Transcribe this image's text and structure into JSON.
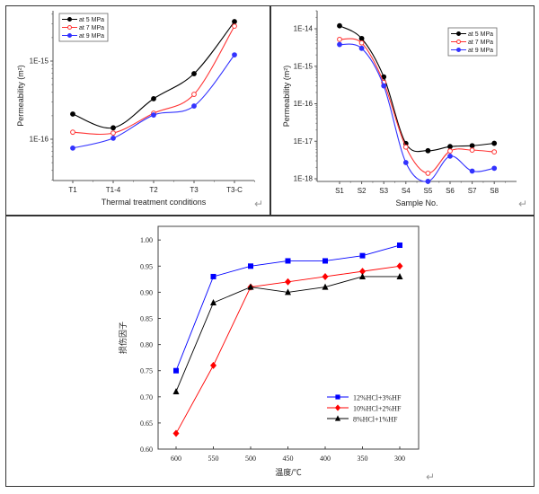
{
  "return_glyph": "↵",
  "chart_data": [
    {
      "type": "line",
      "yscale": "log",
      "title": "",
      "xlabel": "Thermal treatment conditions",
      "ylabel": "Permeability (m²)",
      "categories": [
        "T1",
        "T1-4",
        "T2",
        "T3",
        "T3-C"
      ],
      "ytick_labels": [
        "1E-16",
        "1E-15"
      ],
      "ylim": [
        3e-17,
        5e-15
      ],
      "legend_position": "top-left",
      "series": [
        {
          "name": "at 5 MPa",
          "color": "#000000",
          "marker": "filled-circle",
          "values": [
            2.1e-16,
            1.4e-16,
            3.3e-16,
            6.9e-16,
            3.2e-15
          ]
        },
        {
          "name": "at 7 MPa",
          "color": "#ff3333",
          "marker": "open-circle",
          "values": [
            1.23e-16,
            1.2e-16,
            2.15e-16,
            3.75e-16,
            2.8e-15
          ]
        },
        {
          "name": "at 9 MPa",
          "color": "#3333ff",
          "marker": "filled-circle",
          "values": [
            7.7e-17,
            1.03e-16,
            2.04e-16,
            2.66e-16,
            1.2e-15
          ]
        }
      ]
    },
    {
      "type": "line",
      "yscale": "log",
      "title": "",
      "xlabel": "Sample No.",
      "ylabel": "Permeability (m²)",
      "categories": [
        "S1",
        "S2",
        "S3",
        "S4",
        "S5",
        "S6",
        "S7",
        "S8"
      ],
      "ytick_labels": [
        "1E-18",
        "1E-17",
        "1E-16",
        "1E-15",
        "1E-14"
      ],
      "ylim": [
        8e-19,
        1.5e-14
      ],
      "legend_position": "top-right",
      "series": [
        {
          "name": "at 5 MPa",
          "color": "#000000",
          "marker": "filled-circle",
          "values": [
            1.2e-14,
            5.5e-15,
            5.2e-16,
            8.7e-18,
            5.6e-18,
            7.2e-18,
            7.6e-18,
            8.8e-18
          ]
        },
        {
          "name": "at 7 MPa",
          "color": "#ff3333",
          "marker": "open-circle",
          "values": [
            5.2e-15,
            4.2e-15,
            3.7e-16,
            7e-18,
            1.4e-18,
            5.5e-18,
            5.8e-18,
            5.2e-18
          ]
        },
        {
          "name": "at 9 MPa",
          "color": "#3333ff",
          "marker": "filled-circle",
          "values": [
            3.8e-15,
            3e-15,
            3e-16,
            2.7e-18,
            8.5e-19,
            4e-18,
            1.6e-18,
            1.9e-18
          ]
        }
      ]
    },
    {
      "type": "line",
      "title": "",
      "xlabel": "温度/℃",
      "ylabel": "损伤因子",
      "categories": [
        "600",
        "550",
        "500",
        "450",
        "400",
        "350",
        "300"
      ],
      "ytick_labels": [
        "0.60",
        "0.65",
        "0.70",
        "0.75",
        "0.80",
        "0.85",
        "0.90",
        "0.95",
        "1.00"
      ],
      "ylim": [
        0.6,
        1.02
      ],
      "grid": false,
      "legend_position": "bottom-right",
      "series": [
        {
          "name": "12%HCl+3%HF",
          "color": "#0000ff",
          "marker": "square",
          "values": [
            0.75,
            0.93,
            0.95,
            0.96,
            0.96,
            0.97,
            0.99
          ]
        },
        {
          "name": "10%HCl+2%HF",
          "color": "#ff0000",
          "marker": "diamond",
          "values": [
            0.63,
            0.76,
            0.91,
            0.92,
            0.93,
            0.94,
            0.95
          ]
        },
        {
          "name": "8%HCl+1%HF",
          "color": "#000000",
          "marker": "triangle",
          "values": [
            0.71,
            0.88,
            0.91,
            0.9,
            0.91,
            0.93,
            0.93
          ]
        }
      ]
    }
  ]
}
